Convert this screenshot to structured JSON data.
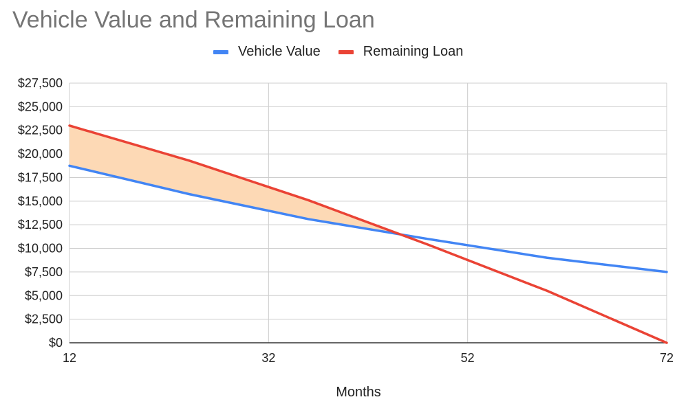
{
  "chart_data": {
    "type": "line",
    "title": "Vehicle Value and Remaining Loan",
    "xlabel": "Months",
    "ylabel": "",
    "x_ticks": [
      12,
      32,
      52,
      72
    ],
    "y_ticks": [
      "$0",
      "$2,500",
      "$5,000",
      "$7,500",
      "$10,000",
      "$12,500",
      "$15,000",
      "$17,500",
      "$20,000",
      "$22,500",
      "$25,000",
      "$27,500"
    ],
    "xlim": [
      12,
      72
    ],
    "ylim": [
      0,
      27500
    ],
    "grid": true,
    "legend_position": "top-center",
    "series": [
      {
        "name": "Vehicle Value",
        "color": "#4285f4",
        "x": [
          12,
          24,
          36,
          48,
          60,
          72
        ],
        "y": [
          18750,
          15750,
          13100,
          11000,
          9000,
          7500
        ]
      },
      {
        "name": "Remaining Loan",
        "color": "#ea4335",
        "x": [
          12,
          24,
          36,
          48,
          60,
          72
        ],
        "y": [
          23000,
          19300,
          15100,
          10400,
          5500,
          0
        ]
      }
    ],
    "shaded_region": {
      "between": [
        "Remaining Loan",
        "Vehicle Value"
      ],
      "color": "#fdd9b5",
      "x_range": [
        12,
        46.5
      ]
    }
  }
}
